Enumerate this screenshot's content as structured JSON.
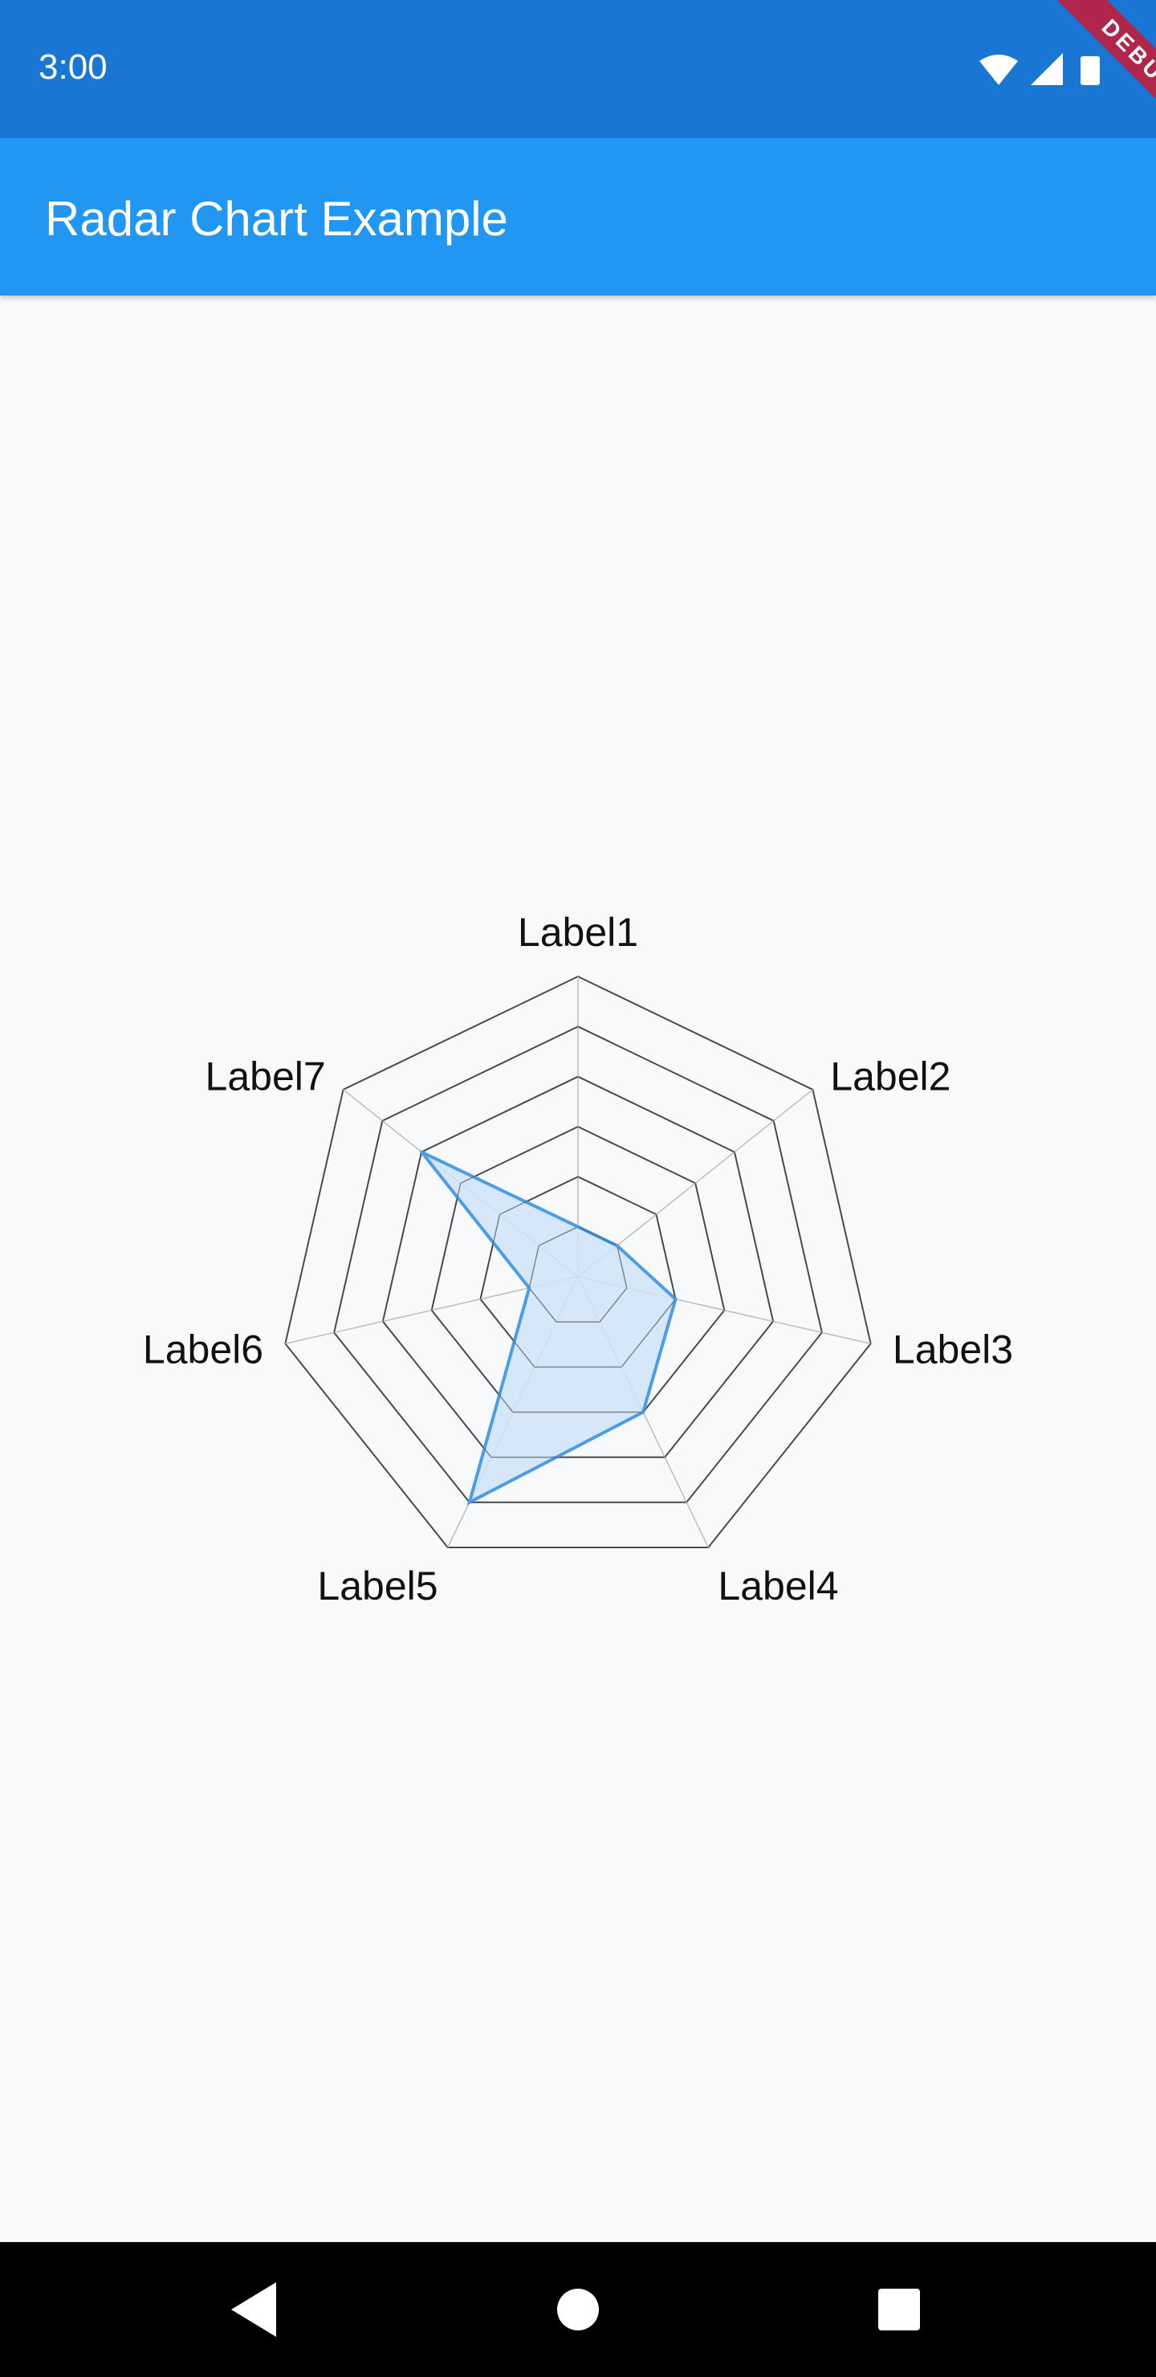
{
  "status_bar": {
    "time": "3:00",
    "icons": [
      "wifi-icon",
      "signal-icon",
      "battery-icon"
    ],
    "background": "#1976d2"
  },
  "debug_banner": {
    "text": "DEBUG",
    "color": "#b0264a"
  },
  "app_bar": {
    "title": "Radar Chart Example",
    "background": "#2196f3"
  },
  "chart_data": {
    "type": "radar",
    "labels": [
      "Label1",
      "Label2",
      "Label3",
      "Label4",
      "Label5",
      "Label6",
      "Label7"
    ],
    "ticks": [
      1,
      2,
      3,
      4,
      5,
      6
    ],
    "max": 6,
    "series": [
      {
        "values": [
          1,
          1,
          2,
          3,
          5,
          1,
          4
        ],
        "color": "#4a9de6",
        "fill": "#cfe4f8"
      }
    ],
    "grid_color": "#4a4a4a"
  },
  "nav_bar": {
    "buttons": [
      "back-icon",
      "home-icon",
      "recents-icon"
    ]
  }
}
